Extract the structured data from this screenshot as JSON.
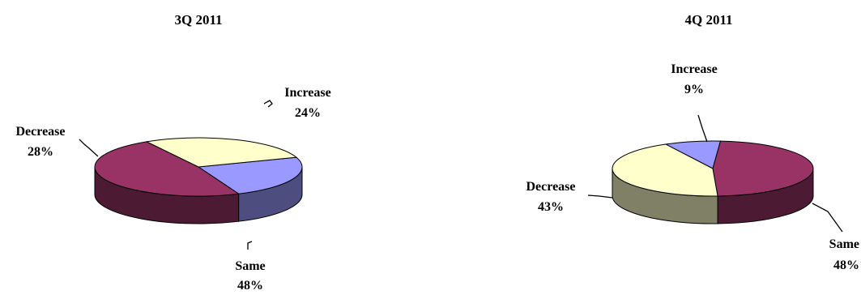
{
  "chart_data": [
    {
      "type": "pie",
      "title": "3Q 2011",
      "categories": [
        "Increase",
        "Same",
        "Decrease"
      ],
      "values": [
        24,
        48,
        28
      ],
      "value_labels": [
        "24%",
        "48%",
        "28%"
      ],
      "colors": {
        "Increase": "#9999ff",
        "Same": "#993366",
        "Decrease": "#ffffcc"
      },
      "legend": "none"
    },
    {
      "type": "pie",
      "title": "4Q 2011",
      "categories": [
        "Increase",
        "Same",
        "Decrease"
      ],
      "values": [
        9,
        48,
        43
      ],
      "value_labels": [
        "9%",
        "48%",
        "43%"
      ],
      "colors": {
        "Increase": "#9999ff",
        "Same": "#993366",
        "Decrease": "#ffffcc"
      },
      "legend": "none"
    }
  ]
}
